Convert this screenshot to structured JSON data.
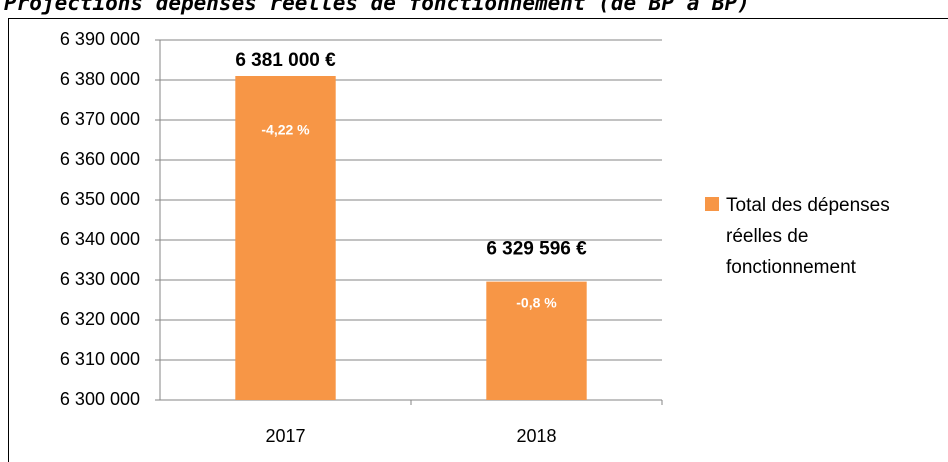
{
  "chart_data": {
    "type": "bar",
    "title": "Projections dépenses réelles de fonctionnement (de BP à BP)",
    "categories": [
      "2017",
      "2018"
    ],
    "series": [
      {
        "name": "Total des dépenses réelles de fonctionnement",
        "color": "#f79646",
        "values": [
          6381000,
          6329596
        ],
        "value_labels": [
          "6 381 000 €",
          "6 329 596 €"
        ],
        "annotations": [
          "-4,22 %",
          "-0,8 %"
        ]
      }
    ],
    "ylim": [
      6300000,
      6390000
    ],
    "yticks": [
      {
        "value": 6300000,
        "label": "6 300 000"
      },
      {
        "value": 6310000,
        "label": "6 310 000"
      },
      {
        "value": 6320000,
        "label": "6 320 000"
      },
      {
        "value": 6330000,
        "label": "6 330 000"
      },
      {
        "value": 6340000,
        "label": "6 340 000"
      },
      {
        "value": 6350000,
        "label": "6 350 000"
      },
      {
        "value": 6360000,
        "label": "6 360 000"
      },
      {
        "value": 6370000,
        "label": "6 370 000"
      },
      {
        "value": 6380000,
        "label": "6 380 000"
      },
      {
        "value": 6390000,
        "label": "6 390 000"
      }
    ],
    "grid": true,
    "legend": "right"
  }
}
